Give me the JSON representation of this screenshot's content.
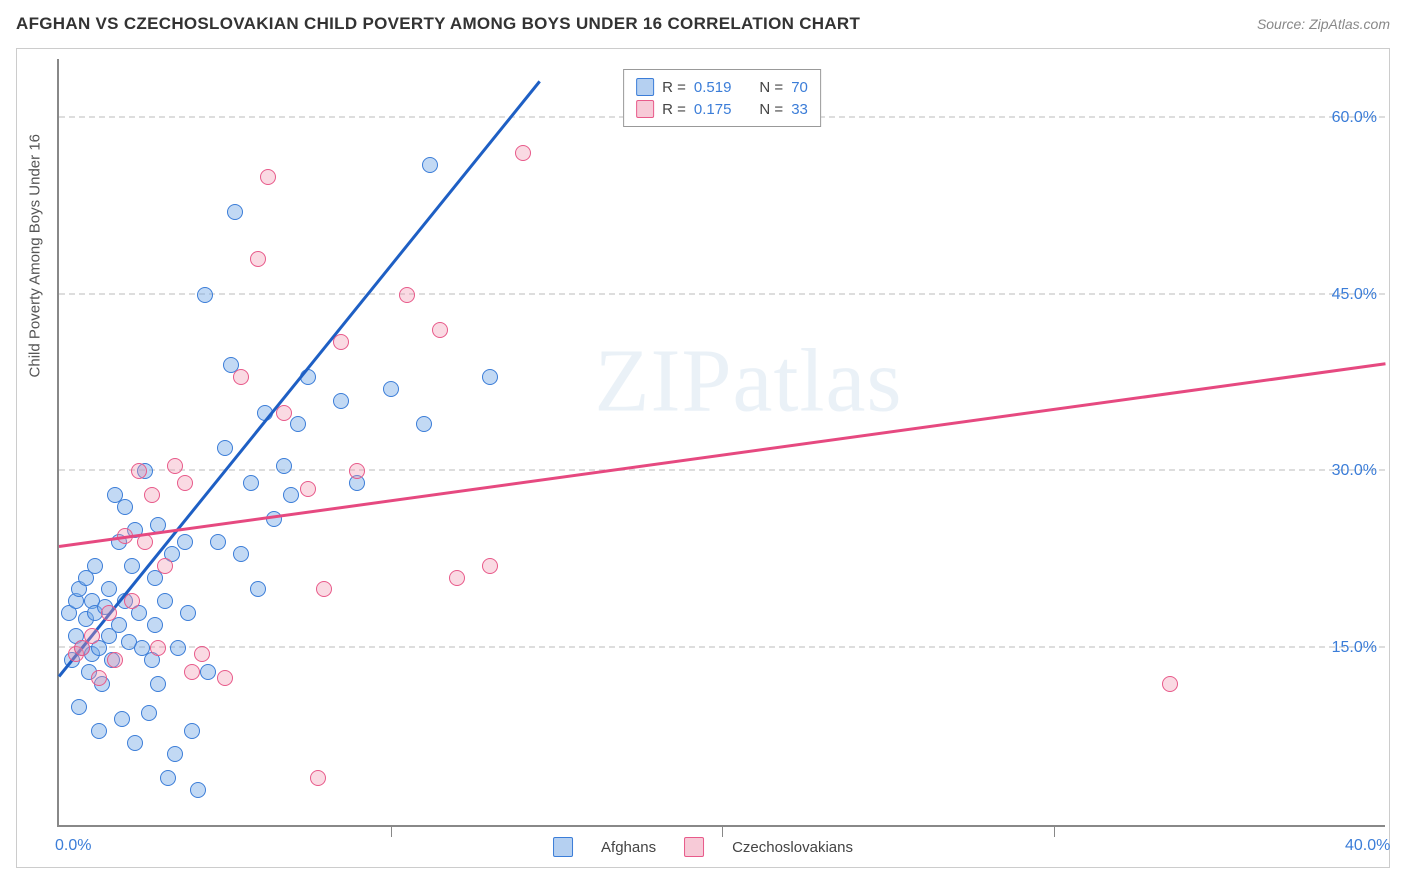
{
  "title": "AFGHAN VS CZECHOSLOVAKIAN CHILD POVERTY AMONG BOYS UNDER 16 CORRELATION CHART",
  "source": "Source: ZipAtlas.com",
  "watermark": "ZIPatlas",
  "ylabel": "Child Poverty Among Boys Under 16",
  "chart": {
    "type": "scatter",
    "xlim": [
      0,
      40
    ],
    "ylim": [
      0,
      65
    ],
    "xtick_positions": [
      0,
      10,
      20,
      30,
      40
    ],
    "xtick_labels": [
      "0.0%",
      "",
      "",
      "",
      "40.0%"
    ],
    "ytick_positions": [
      15,
      30,
      45,
      60
    ],
    "ytick_labels": [
      "15.0%",
      "30.0%",
      "45.0%",
      "60.0%"
    ],
    "grid_color": "#dddddd",
    "axis_color": "#888888",
    "label_color": "#3b7dd8",
    "label_fontsize": 16,
    "series": [
      {
        "name": "Afghans",
        "marker_fill": "rgba(120,170,230,0.45)",
        "marker_stroke": "#3b7dd8",
        "line_color": "#1e5fc4",
        "R": "0.519",
        "N": "70",
        "trend": {
          "x1": 0,
          "y1": 12.5,
          "x2": 14.5,
          "y2": 63
        },
        "points": [
          [
            0.3,
            18
          ],
          [
            0.4,
            14
          ],
          [
            0.5,
            16
          ],
          [
            0.5,
            19
          ],
          [
            0.6,
            10
          ],
          [
            0.6,
            20
          ],
          [
            0.7,
            15
          ],
          [
            0.8,
            17.5
          ],
          [
            0.8,
            21
          ],
          [
            0.9,
            13
          ],
          [
            1.0,
            19
          ],
          [
            1.0,
            14.5
          ],
          [
            1.1,
            18
          ],
          [
            1.1,
            22
          ],
          [
            1.2,
            15
          ],
          [
            1.2,
            8
          ],
          [
            1.3,
            12
          ],
          [
            1.4,
            18.5
          ],
          [
            1.5,
            16
          ],
          [
            1.5,
            20
          ],
          [
            1.6,
            14
          ],
          [
            1.7,
            28
          ],
          [
            1.8,
            17
          ],
          [
            1.8,
            24
          ],
          [
            1.9,
            9
          ],
          [
            2.0,
            19
          ],
          [
            2.0,
            27
          ],
          [
            2.1,
            15.5
          ],
          [
            2.2,
            22
          ],
          [
            2.3,
            25
          ],
          [
            2.3,
            7
          ],
          [
            2.4,
            18
          ],
          [
            2.5,
            15
          ],
          [
            2.6,
            30
          ],
          [
            2.7,
            9.5
          ],
          [
            2.8,
            14
          ],
          [
            2.9,
            17
          ],
          [
            2.9,
            21
          ],
          [
            3.0,
            25.5
          ],
          [
            3.0,
            12
          ],
          [
            3.2,
            19
          ],
          [
            3.3,
            4
          ],
          [
            3.4,
            23
          ],
          [
            3.5,
            6
          ],
          [
            3.6,
            15
          ],
          [
            3.8,
            24
          ],
          [
            3.9,
            18
          ],
          [
            4.0,
            8
          ],
          [
            4.2,
            3
          ],
          [
            4.4,
            45
          ],
          [
            4.5,
            13
          ],
          [
            4.8,
            24
          ],
          [
            5.0,
            32
          ],
          [
            5.2,
            39
          ],
          [
            5.3,
            52
          ],
          [
            5.5,
            23
          ],
          [
            5.8,
            29
          ],
          [
            6.0,
            20
          ],
          [
            6.2,
            35
          ],
          [
            6.5,
            26
          ],
          [
            6.8,
            30.5
          ],
          [
            7.0,
            28
          ],
          [
            7.2,
            34
          ],
          [
            7.5,
            38
          ],
          [
            8.5,
            36
          ],
          [
            9.0,
            29
          ],
          [
            10.0,
            37
          ],
          [
            11.0,
            34
          ],
          [
            11.2,
            56
          ],
          [
            13.0,
            38
          ]
        ]
      },
      {
        "name": "Czechoslovakians",
        "marker_fill": "rgba(240,150,175,0.35)",
        "marker_stroke": "#e85a8a",
        "line_color": "#e64980",
        "R": "0.175",
        "N": "33",
        "trend": {
          "x1": 0,
          "y1": 23.5,
          "x2": 40,
          "y2": 39
        },
        "points": [
          [
            0.5,
            14.5
          ],
          [
            0.7,
            15
          ],
          [
            1.0,
            16
          ],
          [
            1.2,
            12.5
          ],
          [
            1.5,
            18
          ],
          [
            1.7,
            14
          ],
          [
            2.0,
            24.5
          ],
          [
            2.2,
            19
          ],
          [
            2.4,
            30
          ],
          [
            2.6,
            24
          ],
          [
            2.8,
            28
          ],
          [
            3.0,
            15
          ],
          [
            3.2,
            22
          ],
          [
            3.5,
            30.5
          ],
          [
            3.8,
            29
          ],
          [
            4.0,
            13
          ],
          [
            4.3,
            14.5
          ],
          [
            5.0,
            12.5
          ],
          [
            5.5,
            38
          ],
          [
            6.0,
            48
          ],
          [
            6.3,
            55
          ],
          [
            6.8,
            35
          ],
          [
            7.5,
            28.5
          ],
          [
            7.8,
            4
          ],
          [
            8.0,
            20
          ],
          [
            8.5,
            41
          ],
          [
            9.0,
            30
          ],
          [
            10.5,
            45
          ],
          [
            11.5,
            42
          ],
          [
            12.0,
            21
          ],
          [
            13.0,
            22
          ],
          [
            14.0,
            57
          ],
          [
            33.5,
            12
          ]
        ]
      }
    ]
  },
  "legend": {
    "rows": [
      {
        "series": 0,
        "r_label": "R =",
        "r_val": "0.519",
        "n_label": "N =",
        "n_val": "70"
      },
      {
        "series": 1,
        "r_label": "R =",
        "r_val": "0.175",
        "n_label": "N =",
        "n_val": "33"
      }
    ]
  },
  "x_legend": {
    "items": [
      {
        "series": 0,
        "label": "Afghans"
      },
      {
        "series": 1,
        "label": "Czechoslovakians"
      }
    ]
  }
}
